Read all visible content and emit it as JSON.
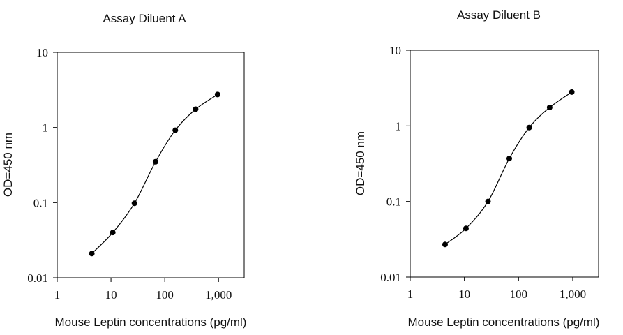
{
  "chart_data": [
    {
      "type": "line",
      "title": "Assay Diluent A",
      "xlabel": "Mouse Leptin concentrations (pg/ml)",
      "ylabel": "OD=450 nm",
      "xscale": "log",
      "yscale": "log",
      "xlim": [
        1,
        3000
      ],
      "ylim": [
        0.01,
        10
      ],
      "xticks": [
        1,
        10,
        100,
        1000
      ],
      "xtick_labels": [
        "1",
        "10",
        "100",
        "1,000"
      ],
      "yticks": [
        0.01,
        0.1,
        1,
        10
      ],
      "ytick_labels": [
        "0.01",
        "0.1",
        "1",
        "10"
      ],
      "grid": false,
      "marker_color": "#000000",
      "x": [
        4.4,
        10.8,
        27.3,
        67.4,
        157,
        375,
        960
      ],
      "y": [
        0.021,
        0.04,
        0.098,
        0.35,
        0.92,
        1.75,
        2.75
      ]
    },
    {
      "type": "line",
      "title": "Assay Diluent B",
      "xlabel": "Mouse Leptin concentrations (pg/ml)",
      "ylabel": "OD=450 nm",
      "xscale": "log",
      "yscale": "log",
      "xlim": [
        1,
        3000
      ],
      "ylim": [
        0.01,
        10
      ],
      "xticks": [
        1,
        10,
        100,
        1000
      ],
      "xtick_labels": [
        "1",
        "10",
        "100",
        "1,000"
      ],
      "yticks": [
        0.01,
        0.1,
        1,
        10
      ],
      "ytick_labels": [
        "0.01",
        "0.1",
        "1",
        "10"
      ],
      "grid": false,
      "marker_color": "#000000",
      "x": [
        4.4,
        10.7,
        27.3,
        67.4,
        157,
        375,
        960
      ],
      "y": [
        0.027,
        0.044,
        0.1,
        0.37,
        0.95,
        1.75,
        2.8
      ]
    }
  ]
}
